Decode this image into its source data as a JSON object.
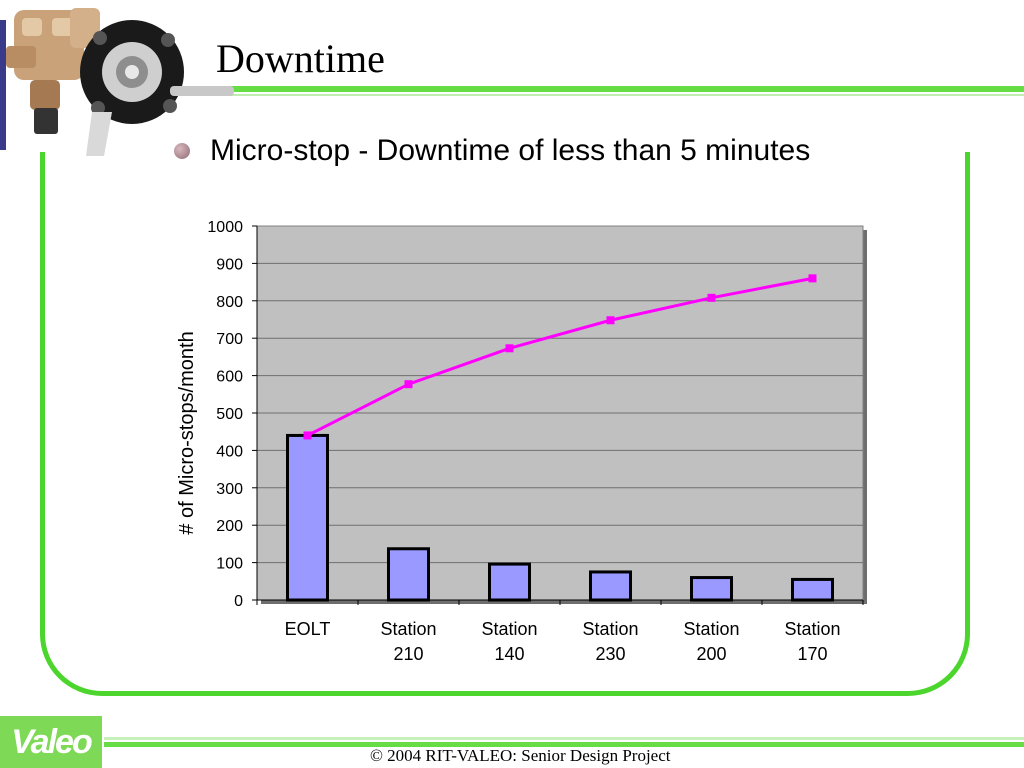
{
  "slide": {
    "title": "Downtime",
    "bullet": "Micro-stop - Downtime of less than 5 minutes",
    "footer": "© 2004 RIT-VALEO: Senior Design Project",
    "logo_text": "Valeo"
  },
  "chart_data": {
    "type": "bar",
    "ylabel": "# of Micro-stops/month",
    "ylim": [
      0,
      1000
    ],
    "yticks": [
      "0",
      "100",
      "200",
      "300",
      "400",
      "500",
      "600",
      "700",
      "800",
      "900",
      "1000"
    ],
    "categories": [
      "EOLT",
      "Station 210",
      "Station 140",
      "Station 230",
      "Station 200",
      "Station 170"
    ],
    "category_lines": [
      [
        "EOLT"
      ],
      [
        "Station",
        "210"
      ],
      [
        "Station",
        "140"
      ],
      [
        "Station",
        "230"
      ],
      [
        "Station",
        "200"
      ],
      [
        "Station",
        "170"
      ]
    ],
    "series": [
      {
        "type": "bar",
        "values": [
          440,
          137,
          96,
          75,
          60,
          55
        ],
        "color": "#9999ff"
      },
      {
        "type": "line",
        "values": [
          440,
          577,
          673,
          748,
          808,
          860
        ],
        "color": "#ff00ff"
      }
    ],
    "plot_background": "#c0c0c0",
    "grid": true,
    "legend": "none"
  }
}
